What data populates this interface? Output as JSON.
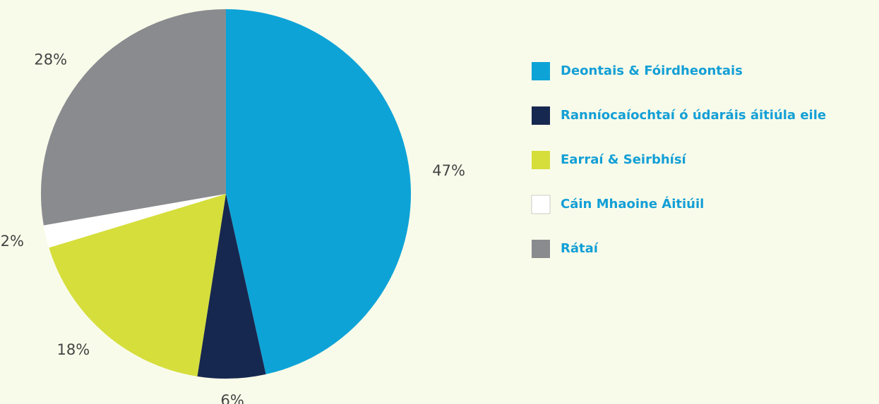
{
  "chart_data": {
    "type": "pie",
    "categories": [
      "Deontais & Fóirdheontais",
      "Ranníocaíochtaí ó údaráis áitiúla eile",
      "Earraí & Seirbhísí",
      "Cáin Mhaoine Áitiúil",
      "Rátaí"
    ],
    "values": [
      47,
      6,
      18,
      2,
      28
    ],
    "value_labels": [
      "47%",
      "6%",
      "18%",
      "2%",
      "28%"
    ],
    "colors": [
      "#0ea3d7",
      "#172850",
      "#d5de3b",
      "#ffffff",
      "#8a8b8f"
    ],
    "legend": "right"
  }
}
